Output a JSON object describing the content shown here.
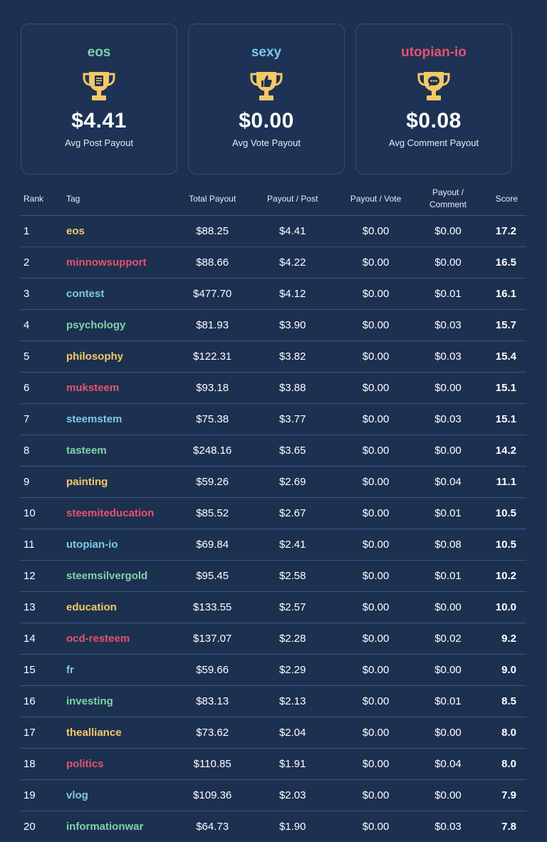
{
  "cards": [
    {
      "tag": "eos",
      "value": "$4.41",
      "label": "Avg Post Payout",
      "color": "#7fd3a7",
      "icon": "trophy-document-icon"
    },
    {
      "tag": "sexy",
      "value": "$0.00",
      "label": "Avg Vote Payout",
      "color": "#7dc9e8",
      "icon": "trophy-thumbs-up-icon"
    },
    {
      "tag": "utopian-io",
      "value": "$0.08",
      "label": "Avg Comment Payout",
      "color": "#e8516a",
      "icon": "trophy-comment-icon"
    }
  ],
  "table": {
    "headers": {
      "rank": "Rank",
      "tag": "Tag",
      "total": "Total Payout",
      "per_post": "Payout / Post",
      "per_vote": "Payout / Vote",
      "per_comment_1": "Payout /",
      "per_comment_2": "Comment",
      "score": "Score"
    },
    "rows": [
      {
        "rank": "1",
        "tag": "eos",
        "color": "yellow",
        "total": "$88.25",
        "post": "$4.41",
        "vote": "$0.00",
        "comment": "$0.00",
        "score": "17.2"
      },
      {
        "rank": "2",
        "tag": "minnowsupport",
        "color": "red",
        "total": "$88.66",
        "post": "$4.22",
        "vote": "$0.00",
        "comment": "$0.00",
        "score": "16.5"
      },
      {
        "rank": "3",
        "tag": "contest",
        "color": "blue",
        "total": "$477.70",
        "post": "$4.12",
        "vote": "$0.00",
        "comment": "$0.01",
        "score": "16.1"
      },
      {
        "rank": "4",
        "tag": "psychology",
        "color": "green",
        "total": "$81.93",
        "post": "$3.90",
        "vote": "$0.00",
        "comment": "$0.03",
        "score": "15.7"
      },
      {
        "rank": "5",
        "tag": "philosophy",
        "color": "yellow",
        "total": "$122.31",
        "post": "$3.82",
        "vote": "$0.00",
        "comment": "$0.03",
        "score": "15.4"
      },
      {
        "rank": "6",
        "tag": "muksteem",
        "color": "red",
        "total": "$93.18",
        "post": "$3.88",
        "vote": "$0.00",
        "comment": "$0.00",
        "score": "15.1"
      },
      {
        "rank": "7",
        "tag": "steemstem",
        "color": "blue",
        "total": "$75.38",
        "post": "$3.77",
        "vote": "$0.00",
        "comment": "$0.03",
        "score": "15.1"
      },
      {
        "rank": "8",
        "tag": "tasteem",
        "color": "green",
        "total": "$248.16",
        "post": "$3.65",
        "vote": "$0.00",
        "comment": "$0.00",
        "score": "14.2"
      },
      {
        "rank": "9",
        "tag": "painting",
        "color": "yellow",
        "total": "$59.26",
        "post": "$2.69",
        "vote": "$0.00",
        "comment": "$0.04",
        "score": "11.1"
      },
      {
        "rank": "10",
        "tag": "steemiteducation",
        "color": "red",
        "total": "$85.52",
        "post": "$2.67",
        "vote": "$0.00",
        "comment": "$0.01",
        "score": "10.5"
      },
      {
        "rank": "11",
        "tag": "utopian-io",
        "color": "blue",
        "total": "$69.84",
        "post": "$2.41",
        "vote": "$0.00",
        "comment": "$0.08",
        "score": "10.5"
      },
      {
        "rank": "12",
        "tag": "steemsilvergold",
        "color": "green",
        "total": "$95.45",
        "post": "$2.58",
        "vote": "$0.00",
        "comment": "$0.01",
        "score": "10.2"
      },
      {
        "rank": "13",
        "tag": "education",
        "color": "yellow",
        "total": "$133.55",
        "post": "$2.57",
        "vote": "$0.00",
        "comment": "$0.00",
        "score": "10.0"
      },
      {
        "rank": "14",
        "tag": "ocd-resteem",
        "color": "red",
        "total": "$137.07",
        "post": "$2.28",
        "vote": "$0.00",
        "comment": "$0.02",
        "score": "9.2"
      },
      {
        "rank": "15",
        "tag": "fr",
        "color": "blue",
        "total": "$59.66",
        "post": "$2.29",
        "vote": "$0.00",
        "comment": "$0.00",
        "score": "9.0"
      },
      {
        "rank": "16",
        "tag": "investing",
        "color": "green",
        "total": "$83.13",
        "post": "$2.13",
        "vote": "$0.00",
        "comment": "$0.01",
        "score": "8.5"
      },
      {
        "rank": "17",
        "tag": "thealliance",
        "color": "yellow",
        "total": "$73.62",
        "post": "$2.04",
        "vote": "$0.00",
        "comment": "$0.00",
        "score": "8.0"
      },
      {
        "rank": "18",
        "tag": "politics",
        "color": "red",
        "total": "$110.85",
        "post": "$1.91",
        "vote": "$0.00",
        "comment": "$0.04",
        "score": "8.0"
      },
      {
        "rank": "19",
        "tag": "vlog",
        "color": "blue",
        "total": "$109.36",
        "post": "$2.03",
        "vote": "$0.00",
        "comment": "$0.00",
        "score": "7.9"
      },
      {
        "rank": "20",
        "tag": "informationwar",
        "color": "green",
        "total": "$64.73",
        "post": "$1.90",
        "vote": "$0.00",
        "comment": "$0.03",
        "score": "7.8"
      }
    ]
  },
  "palette": {
    "green": "#7fd3a7",
    "blue": "#7dc9e8",
    "red": "#e8516a",
    "yellow": "#f5c866",
    "trophy": "#f5c866"
  }
}
